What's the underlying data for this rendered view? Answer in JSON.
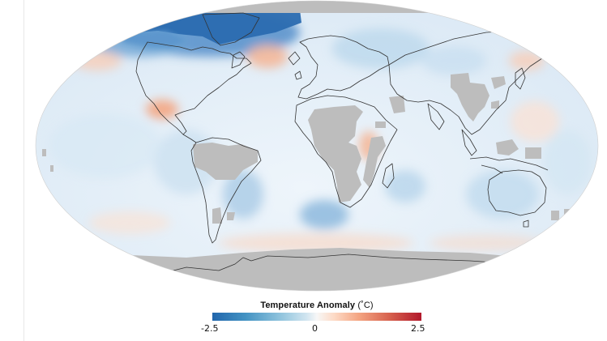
{
  "legend": {
    "title": "Temperature Anomaly",
    "unit": "(˚C)",
    "min_label": "-2.5",
    "mid_label": "0",
    "max_label": "2.5",
    "range": [
      -2.5,
      2.5
    ],
    "colors": {
      "cold": "#2166ac",
      "neutral": "#f7f7f7",
      "warm": "#b2182b",
      "no_data": "#bdbdbd",
      "coastline": "#333333"
    }
  }
}
